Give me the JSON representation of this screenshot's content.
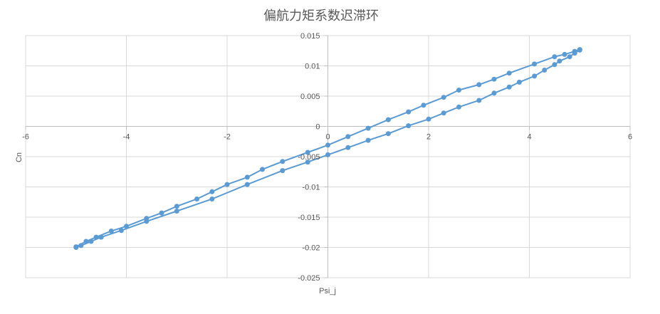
{
  "chart_data": {
    "type": "scatter",
    "title": "偏航力矩系数迟滞环",
    "xlabel": "Psi_j",
    "ylabel": "Cn",
    "xlim": [
      -6,
      6
    ],
    "ylim": [
      -0.025,
      0.015
    ],
    "x_ticks": [
      "-6",
      "-4",
      "-2",
      "0",
      "2",
      "4",
      "6"
    ],
    "y_ticks": [
      "0.015",
      "0.01",
      "0.005",
      "0",
      "-0.005",
      "-0.01",
      "-0.015",
      "-0.02",
      "-0.025"
    ],
    "grid": true,
    "legend": "none",
    "colors": {
      "series": "#5b9bd5",
      "grid": "#d9d9d9",
      "axis": "#bfbfbf",
      "text": "#595959"
    },
    "series": [
      {
        "x": [
          -5.0,
          -4.9,
          -4.7,
          -4.5,
          -4.1,
          -3.6,
          -3.0,
          -2.3,
          -1.6,
          -0.9,
          -0.4,
          0.0,
          0.4,
          0.8,
          1.2,
          1.6,
          2.0,
          2.3,
          2.6,
          3.0,
          3.3,
          3.6,
          3.8,
          4.1,
          4.3,
          4.5,
          4.6,
          4.8,
          4.9,
          5.0
        ],
        "y": [
          -0.02,
          -0.0197,
          -0.019,
          -0.0183,
          -0.0172,
          -0.0157,
          -0.014,
          -0.012,
          -0.0096,
          -0.0073,
          -0.0059,
          -0.0047,
          -0.0035,
          -0.0023,
          -0.0012,
          0.0001,
          0.0012,
          0.0022,
          0.0032,
          0.0043,
          0.0055,
          0.0065,
          0.0073,
          0.0083,
          0.0093,
          0.0102,
          0.0108,
          0.0115,
          0.0121,
          0.0126
        ]
      },
      {
        "x": [
          5.0,
          4.9,
          4.7,
          4.5,
          4.1,
          3.6,
          3.3,
          3.0,
          2.6,
          2.3,
          1.9,
          1.6,
          1.2,
          0.8,
          0.4,
          0.0,
          -0.4,
          -0.9,
          -1.3,
          -1.6,
          -2.0,
          -2.3,
          -2.6,
          -3.0,
          -3.3,
          -3.6,
          -4.0,
          -4.3,
          -4.6,
          -4.8,
          -5.0
        ],
        "y": [
          0.0127,
          0.0124,
          0.0119,
          0.0115,
          0.0103,
          0.0088,
          0.0078,
          0.0069,
          0.006,
          0.0048,
          0.0035,
          0.0024,
          0.0011,
          -0.0003,
          -0.0017,
          -0.0031,
          -0.0043,
          -0.0058,
          -0.0071,
          -0.0084,
          -0.0096,
          -0.0108,
          -0.012,
          -0.0132,
          -0.0143,
          -0.0152,
          -0.0165,
          -0.0173,
          -0.0183,
          -0.019,
          -0.0199
        ]
      }
    ]
  }
}
